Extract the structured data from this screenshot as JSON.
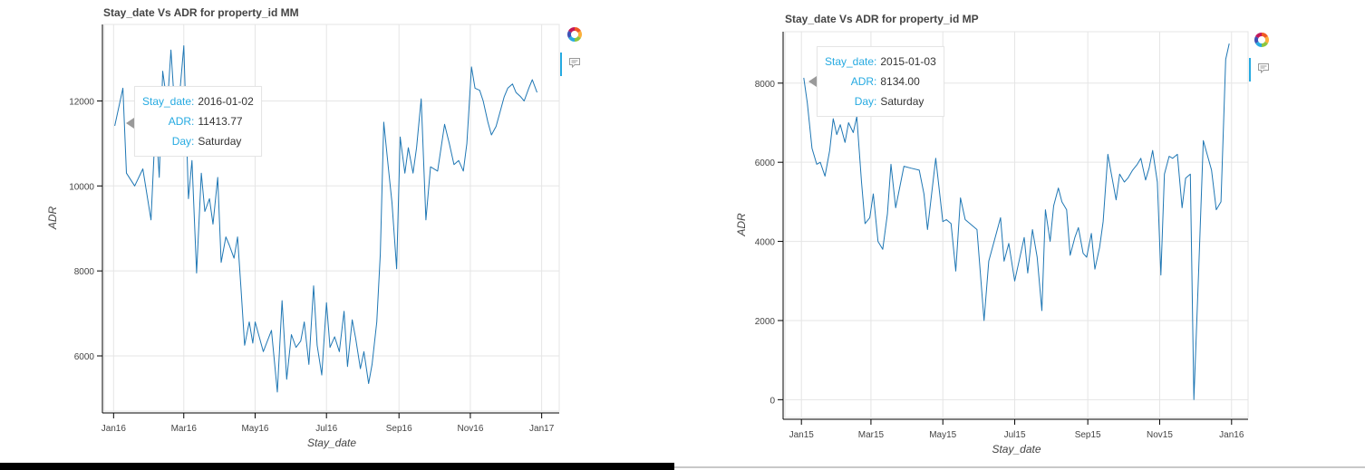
{
  "charts": [
    {
      "title": "Stay_date Vs ADR for property_id MM",
      "xlabel": "Stay_date",
      "ylabel": "ADR",
      "tooltip": {
        "rows": [
          {
            "key": "Stay_date:",
            "value": "2016-01-02"
          },
          {
            "key": "ADR:",
            "value": "11413.77"
          },
          {
            "key": "Day:",
            "value": "Saturday"
          }
        ]
      }
    },
    {
      "title": "Stay_date Vs ADR for property_id MP",
      "xlabel": "Stay_date",
      "ylabel": "ADR",
      "tooltip": {
        "rows": [
          {
            "key": "Stay_date:",
            "value": "2015-01-03"
          },
          {
            "key": "ADR:",
            "value": "8134.00"
          },
          {
            "key": "Day:",
            "value": "Saturday"
          }
        ]
      }
    }
  ],
  "toolbar": {
    "icons": [
      "bokeh-logo-icon",
      "hover-tool-icon"
    ],
    "active_color": "#26aae1"
  },
  "chart_data": [
    {
      "type": "line",
      "title": "Stay_date Vs ADR for property_id MM",
      "xlabel": "Stay_date",
      "ylabel": "ADR",
      "x_axis": "datetime",
      "xlim": [
        "2015-12-24",
        "2017-01-16"
      ],
      "ylim": [
        4700,
        13800
      ],
      "grid": true,
      "line_color": "#1f77b4",
      "x_ticks": [
        {
          "date": "2016-01-01",
          "label": "Jan16"
        },
        {
          "date": "2016-03-01",
          "label": "Mar16"
        },
        {
          "date": "2016-05-01",
          "label": "May16"
        },
        {
          "date": "2016-07-01",
          "label": "Jul16"
        },
        {
          "date": "2016-09-01",
          "label": "Sep16"
        },
        {
          "date": "2016-11-01",
          "label": "Nov16"
        },
        {
          "date": "2017-01-01",
          "label": "Jan17"
        }
      ],
      "y_ticks": [
        6000,
        8000,
        10000,
        12000
      ],
      "series": [
        {
          "x": [
            "2016-01-02",
            "2016-01-09",
            "2016-01-12",
            "2016-01-19",
            "2016-01-26",
            "2016-02-02",
            "2016-02-06",
            "2016-02-09",
            "2016-02-12",
            "2016-02-16",
            "2016-02-19",
            "2016-02-23",
            "2016-02-26",
            "2016-03-01",
            "2016-03-05",
            "2016-03-08",
            "2016-03-12",
            "2016-03-16",
            "2016-03-19",
            "2016-03-23",
            "2016-03-26",
            "2016-03-30",
            "2016-04-02",
            "2016-04-06",
            "2016-04-09",
            "2016-04-13",
            "2016-04-16",
            "2016-04-19",
            "2016-04-22",
            "2016-04-26",
            "2016-04-29",
            "2016-05-01",
            "2016-05-08",
            "2016-05-15",
            "2016-05-20",
            "2016-05-24",
            "2016-05-28",
            "2016-06-01",
            "2016-06-05",
            "2016-06-09",
            "2016-06-12",
            "2016-06-16",
            "2016-06-20",
            "2016-06-23",
            "2016-06-27",
            "2016-07-01",
            "2016-07-04",
            "2016-07-08",
            "2016-07-12",
            "2016-07-16",
            "2016-07-19",
            "2016-07-23",
            "2016-07-26",
            "2016-07-30",
            "2016-08-02",
            "2016-08-06",
            "2016-08-09",
            "2016-08-13",
            "2016-08-16",
            "2016-08-19",
            "2016-08-23",
            "2016-08-26",
            "2016-08-30",
            "2016-09-02",
            "2016-09-06",
            "2016-09-09",
            "2016-09-13",
            "2016-09-16",
            "2016-09-20",
            "2016-09-24",
            "2016-09-28",
            "2016-10-04",
            "2016-10-10",
            "2016-10-14",
            "2016-10-18",
            "2016-10-22",
            "2016-10-26",
            "2016-10-29",
            "2016-11-02",
            "2016-11-05",
            "2016-11-09",
            "2016-11-12",
            "2016-11-16",
            "2016-11-19",
            "2016-11-23",
            "2016-11-26",
            "2016-11-30",
            "2016-12-03",
            "2016-12-07",
            "2016-12-10",
            "2016-12-14",
            "2016-12-17",
            "2016-12-21",
            "2016-12-24",
            "2016-12-28"
          ],
          "y": [
            11414,
            12300,
            10300,
            10000,
            10400,
            9200,
            11600,
            10200,
            12700,
            11900,
            13200,
            11500,
            12000,
            13300,
            9700,
            10600,
            7950,
            10300,
            9400,
            9700,
            9100,
            10200,
            8200,
            8800,
            8600,
            8300,
            8800,
            7550,
            6250,
            6800,
            6300,
            6800,
            6100,
            6600,
            5150,
            7300,
            5450,
            6500,
            6200,
            6350,
            6800,
            5800,
            7650,
            6250,
            5550,
            7250,
            6200,
            6450,
            6100,
            7050,
            5750,
            6850,
            6400,
            5700,
            6100,
            5350,
            5800,
            6800,
            8400,
            11500,
            10400,
            9600,
            8050,
            11150,
            10300,
            10900,
            10300,
            10900,
            12050,
            9200,
            10450,
            10350,
            11450,
            11000,
            10500,
            10600,
            10350,
            11000,
            12800,
            12300,
            12250,
            12000,
            11500,
            11200,
            11400,
            11700,
            12100,
            12300,
            12400,
            12200,
            12100,
            12000,
            12300,
            12500,
            12200
          ]
        }
      ]
    },
    {
      "type": "line",
      "title": "Stay_date Vs ADR for property_id MP",
      "xlabel": "Stay_date",
      "ylabel": "ADR",
      "x_axis": "datetime",
      "xlim": [
        "2014-12-18",
        "2016-01-15"
      ],
      "ylim": [
        -450,
        9300
      ],
      "grid": true,
      "line_color": "#1f77b4",
      "x_ticks": [
        {
          "date": "2015-01-01",
          "label": "Jan15"
        },
        {
          "date": "2015-03-01",
          "label": "Mar15"
        },
        {
          "date": "2015-05-01",
          "label": "May15"
        },
        {
          "date": "2015-07-01",
          "label": "Jul15"
        },
        {
          "date": "2015-09-01",
          "label": "Sep15"
        },
        {
          "date": "2015-11-01",
          "label": "Nov15"
        },
        {
          "date": "2016-01-01",
          "label": "Jan16"
        }
      ],
      "y_ticks": [
        0,
        2000,
        4000,
        6000,
        8000
      ],
      "series": [
        {
          "x": [
            "2015-01-03",
            "2015-01-06",
            "2015-01-10",
            "2015-01-14",
            "2015-01-17",
            "2015-01-21",
            "2015-01-25",
            "2015-01-28",
            "2015-01-31",
            "2015-02-03",
            "2015-02-07",
            "2015-02-10",
            "2015-02-14",
            "2015-02-17",
            "2015-02-21",
            "2015-02-24",
            "2015-02-28",
            "2015-03-03",
            "2015-03-07",
            "2015-03-11",
            "2015-03-15",
            "2015-03-18",
            "2015-03-22",
            "2015-03-29",
            "2015-04-04",
            "2015-04-11",
            "2015-04-15",
            "2015-04-18",
            "2015-04-25",
            "2015-05-01",
            "2015-05-04",
            "2015-05-08",
            "2015-05-12",
            "2015-05-16",
            "2015-05-20",
            "2015-05-30",
            "2015-06-05",
            "2015-06-09",
            "2015-06-19",
            "2015-06-22",
            "2015-06-26",
            "2015-07-01",
            "2015-07-05",
            "2015-07-09",
            "2015-07-12",
            "2015-07-16",
            "2015-07-20",
            "2015-07-24",
            "2015-07-27",
            "2015-07-31",
            "2015-08-03",
            "2015-08-07",
            "2015-08-10",
            "2015-08-14",
            "2015-08-17",
            "2015-08-21",
            "2015-08-24",
            "2015-08-28",
            "2015-08-31",
            "2015-09-04",
            "2015-09-07",
            "2015-09-11",
            "2015-09-14",
            "2015-09-18",
            "2015-09-21",
            "2015-09-25",
            "2015-09-28",
            "2015-10-02",
            "2015-10-05",
            "2015-10-09",
            "2015-10-13",
            "2015-10-16",
            "2015-10-20",
            "2015-10-23",
            "2015-10-26",
            "2015-10-30",
            "2015-11-02",
            "2015-11-05",
            "2015-11-09",
            "2015-11-12",
            "2015-11-16",
            "2015-11-20",
            "2015-11-23",
            "2015-11-27",
            "2015-11-30",
            "2015-12-04",
            "2015-12-08",
            "2015-12-15",
            "2015-12-19",
            "2015-12-23",
            "2015-12-27",
            "2015-12-30"
          ],
          "y": [
            8134,
            7500,
            6350,
            5950,
            6000,
            5650,
            6300,
            7100,
            6700,
            6950,
            6500,
            7000,
            6750,
            7150,
            5500,
            4450,
            4600,
            5200,
            4000,
            3800,
            4700,
            5950,
            4850,
            5900,
            5850,
            5800,
            5200,
            4300,
            6100,
            4500,
            4550,
            4450,
            3250,
            5100,
            4550,
            4300,
            2000,
            3500,
            4600,
            3500,
            3950,
            3000,
            3550,
            4100,
            3200,
            4300,
            3600,
            2250,
            4800,
            4000,
            4900,
            5350,
            5000,
            4800,
            3650,
            4100,
            4350,
            3700,
            3600,
            4200,
            3300,
            3850,
            4500,
            6200,
            5700,
            5050,
            5700,
            5500,
            5600,
            5800,
            5950,
            6100,
            5550,
            5850,
            6300,
            5500,
            3150,
            5700,
            6150,
            6100,
            6200,
            4850,
            5600,
            5700,
            0,
            3200,
            6550,
            5800,
            4800,
            5000,
            8600,
            9000
          ]
        }
      ]
    }
  ]
}
